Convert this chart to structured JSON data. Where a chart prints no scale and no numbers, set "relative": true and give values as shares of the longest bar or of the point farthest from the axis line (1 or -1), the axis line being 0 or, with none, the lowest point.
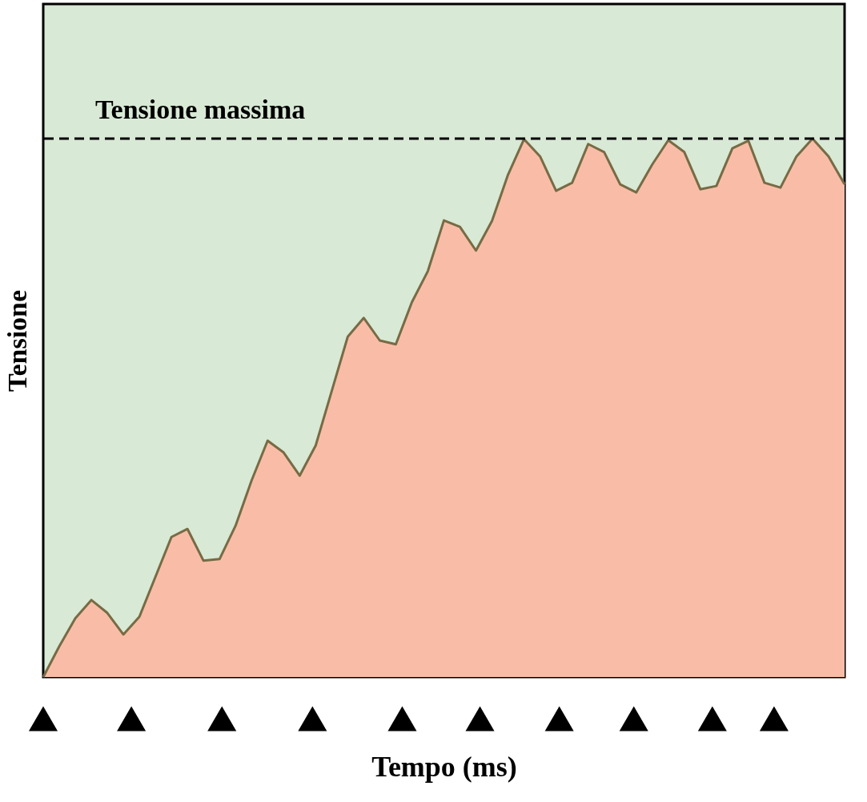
{
  "chart_data": {
    "type": "area",
    "relative": true,
    "ylabel": "Tensione",
    "xlabel": "Tempo (ms)",
    "tick_labels": false,
    "categories": [
      null,
      null,
      null,
      null,
      null,
      null,
      null,
      null,
      null,
      null,
      null,
      null,
      null,
      null,
      null,
      null,
      null,
      null,
      null,
      null,
      null,
      null,
      null,
      null,
      null,
      null,
      null,
      null,
      null,
      null,
      null,
      null,
      null,
      null,
      null,
      null,
      null,
      null,
      null,
      null,
      null,
      null,
      null,
      null,
      null,
      null,
      null,
      null,
      null,
      null,
      null
    ],
    "series": [
      {
        "color": "#f9bda7",
        "values": [
          0,
          0.057,
          0.109,
          0.143,
          0.119,
          0.079,
          0.112,
          0.186,
          0.26,
          0.275,
          0.216,
          0.219,
          0.281,
          0.365,
          0.439,
          0.417,
          0.374,
          0.43,
          0.531,
          0.632,
          0.667,
          0.625,
          0.618,
          0.696,
          0.754,
          0.848,
          0.836,
          0.792,
          0.847,
          0.933,
          0.999,
          0.967,
          0.903,
          0.918,
          0.99,
          0.975,
          0.915,
          0.9,
          0.952,
          0.997,
          0.975,
          0.906,
          0.912,
          0.982,
          0.996,
          0.918,
          0.909,
          0.967,
          1,
          0.967,
          0.915
        ]
      }
    ],
    "ref_lines": [
      {
        "axis": "y",
        "value": 1,
        "label": "Tensione massima",
        "color": "#000000",
        "line_style": "dashed"
      }
    ]
  }
}
